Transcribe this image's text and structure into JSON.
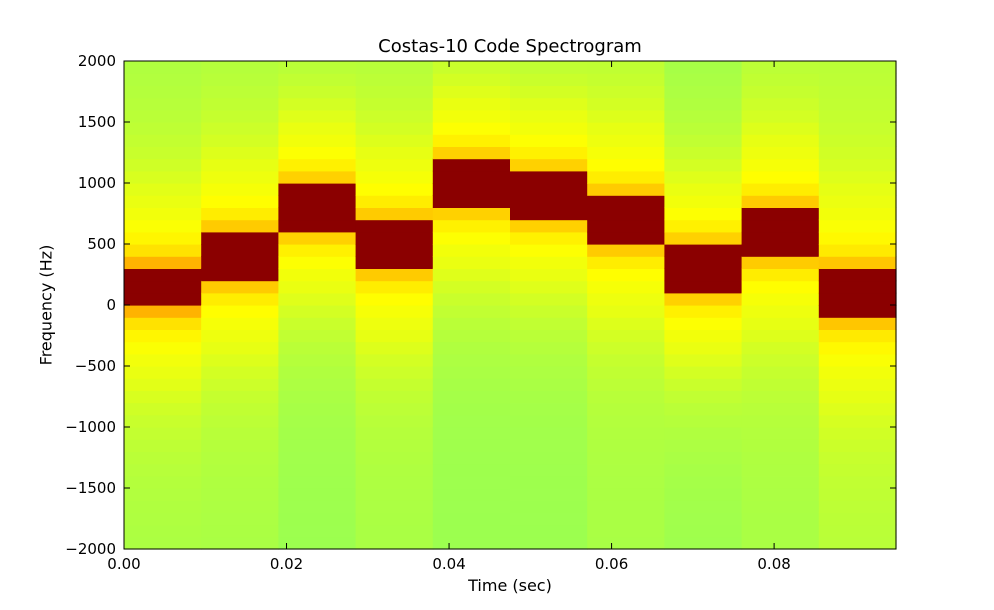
{
  "chart_data": {
    "type": "heatmap",
    "title": "Costas-10 Code Spectrogram",
    "xlabel": "Time (sec)",
    "ylabel": "Frequency (Hz)",
    "xlim": [
      0.0,
      0.095
    ],
    "ylim": [
      -2000,
      2000
    ],
    "x_ticks": [
      0.0,
      0.02,
      0.04,
      0.06,
      0.08
    ],
    "x_tick_labels": [
      "0.00",
      "0.02",
      "0.04",
      "0.06",
      "0.08"
    ],
    "y_ticks": [
      -2000,
      -1500,
      -1000,
      -500,
      0,
      500,
      1000,
      1500,
      2000
    ],
    "y_tick_labels": [
      "−2000",
      "−1500",
      "−1000",
      "−500",
      "0",
      "500",
      "1000",
      "1500",
      "2000"
    ],
    "grid": false,
    "colormap": "autumn_r-like (green → yellow → orange → dark red)",
    "colors": {
      "low": "#9bff50",
      "mid": "#ffff00",
      "high": "#ffb000",
      "peak": "#8b0000"
    },
    "time_bins": [
      0.0,
      0.0095,
      0.019,
      0.0285,
      0.038,
      0.0475,
      0.057,
      0.0665,
      0.076,
      0.0855,
      0.095
    ],
    "freq_bin_hz": 100,
    "tone_centers_hz": [
      150,
      400,
      800,
      500,
      1000,
      900,
      700,
      300,
      600,
      100
    ],
    "background_level": [
      0.05,
      0.05,
      0.0,
      0.05,
      0.0,
      0.0,
      0.05,
      0.0,
      0.05,
      0.1
    ]
  }
}
